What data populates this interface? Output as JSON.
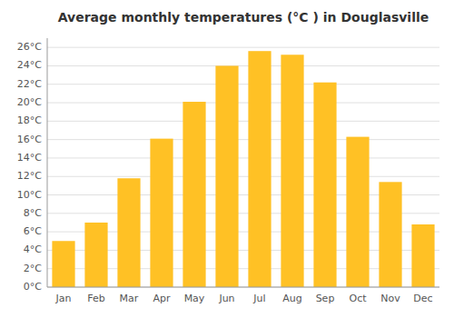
{
  "chart_data": {
    "type": "bar",
    "title": "Average monthly temperatures (°C ) in Douglasville",
    "categories": [
      "Jan",
      "Feb",
      "Mar",
      "Apr",
      "May",
      "Jun",
      "Jul",
      "Aug",
      "Sep",
      "Oct",
      "Nov",
      "Dec"
    ],
    "values": [
      5.0,
      7.0,
      11.8,
      16.1,
      20.1,
      24.0,
      25.6,
      25.2,
      22.2,
      16.3,
      11.4,
      6.8
    ],
    "color": "#FFC125",
    "ylim": [
      0,
      27
    ],
    "yticks": [
      {
        "value": 0,
        "label": "0°C"
      },
      {
        "value": 2,
        "label": "2°C"
      },
      {
        "value": 4,
        "label": "4°C"
      },
      {
        "value": 6,
        "label": "6°C"
      },
      {
        "value": 8,
        "label": "8°C"
      },
      {
        "value": 10,
        "label": "10°C"
      },
      {
        "value": 12,
        "label": "12°C"
      },
      {
        "value": 14,
        "label": "14°C"
      },
      {
        "value": 16,
        "label": "16°C"
      },
      {
        "value": 18,
        "label": "18°C"
      },
      {
        "value": 20,
        "label": "20°C"
      },
      {
        "value": 22,
        "label": "22°C"
      },
      {
        "value": 24,
        "label": "24°C"
      },
      {
        "value": 26,
        "label": "26°C"
      }
    ],
    "grid": true
  }
}
